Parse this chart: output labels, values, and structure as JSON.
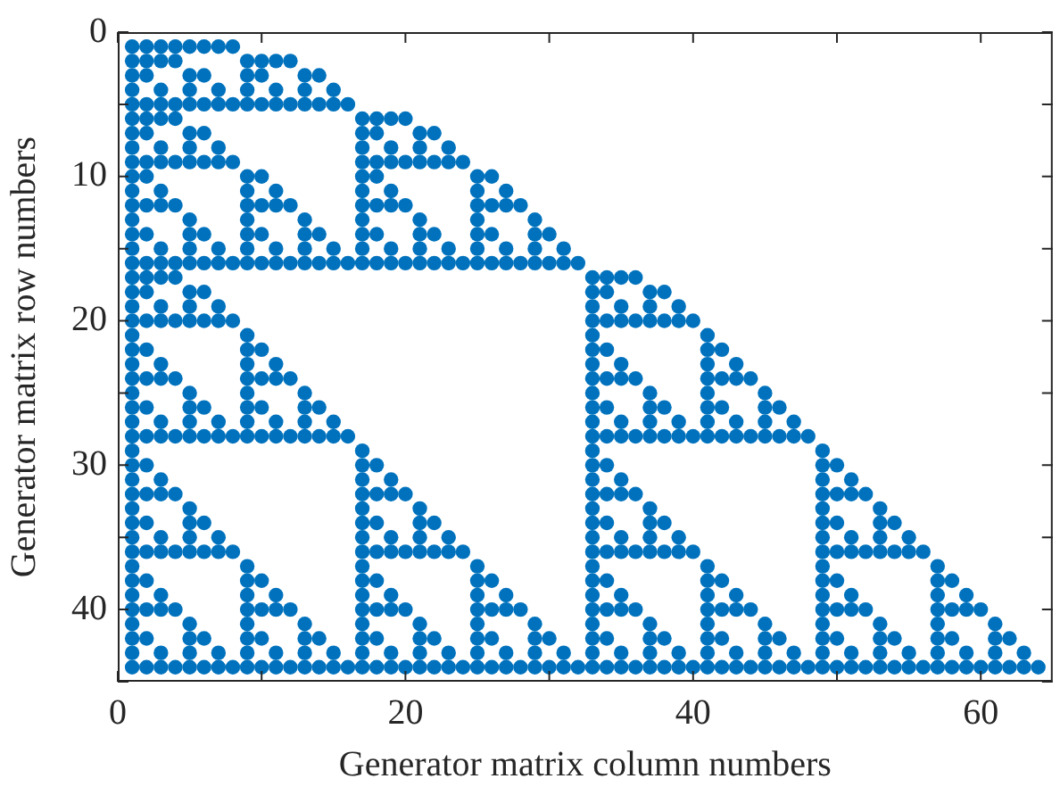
{
  "chart_data": {
    "type": "scatter",
    "xlabel": "Generator matrix column numbers",
    "ylabel": "Generator matrix row numbers",
    "color": "#0072bd",
    "marker": "circle",
    "xlim": [
      0,
      65
    ],
    "ylim": [
      45,
      0
    ],
    "xticks": [
      0,
      {
        "value": 10,
        "label": null
      },
      20,
      {
        "value": 30,
        "label": null
      },
      40,
      {
        "value": 50,
        "label": null
      },
      60
    ],
    "yticks": [
      0,
      {
        "value": 5,
        "label": null
      },
      10,
      {
        "value": 15,
        "label": null
      },
      20,
      {
        "value": 25,
        "label": null
      },
      30,
      {
        "value": 35,
        "label": null
      },
      40,
      {
        "value": 45,
        "label": null
      }
    ],
    "series": [
      {
        "x": [
          1,
          2,
          3,
          4,
          5,
          6,
          7,
          8
        ],
        "values": [
          1,
          1,
          1,
          1,
          1,
          1,
          1,
          1
        ]
      },
      {
        "x": [
          1,
          2,
          3,
          4,
          9,
          10,
          11,
          12
        ],
        "values": [
          2,
          2,
          2,
          2,
          2,
          2,
          2,
          2
        ]
      },
      {
        "x": [
          1,
          2,
          5,
          6,
          9,
          10,
          13,
          14
        ],
        "values": [
          3,
          3,
          3,
          3,
          3,
          3,
          3,
          3
        ]
      },
      {
        "x": [
          1,
          3,
          5,
          7,
          9,
          11,
          13,
          15
        ],
        "values": [
          4,
          4,
          4,
          4,
          4,
          4,
          4,
          4
        ]
      },
      {
        "x": [
          1,
          2,
          3,
          4,
          5,
          6,
          7,
          8,
          9,
          10,
          11,
          12,
          13,
          14,
          15,
          16
        ],
        "values": [
          5,
          5,
          5,
          5,
          5,
          5,
          5,
          5,
          5,
          5,
          5,
          5,
          5,
          5,
          5,
          5
        ]
      },
      {
        "x": [
          1,
          2,
          3,
          4,
          17,
          18,
          19,
          20
        ],
        "values": [
          6,
          6,
          6,
          6,
          6,
          6,
          6,
          6
        ]
      },
      {
        "x": [
          1,
          2,
          5,
          6,
          17,
          18,
          21,
          22
        ],
        "values": [
          7,
          7,
          7,
          7,
          7,
          7,
          7,
          7
        ]
      },
      {
        "x": [
          1,
          3,
          5,
          7,
          17,
          19,
          21,
          23
        ],
        "values": [
          8,
          8,
          8,
          8,
          8,
          8,
          8,
          8
        ]
      },
      {
        "x": [
          1,
          2,
          3,
          4,
          5,
          6,
          7,
          8,
          17,
          18,
          19,
          20,
          21,
          22,
          23,
          24
        ],
        "values": [
          9,
          9,
          9,
          9,
          9,
          9,
          9,
          9,
          9,
          9,
          9,
          9,
          9,
          9,
          9,
          9
        ]
      },
      {
        "x": [
          1,
          2,
          9,
          10,
          17,
          18,
          25,
          26
        ],
        "values": [
          10,
          10,
          10,
          10,
          10,
          10,
          10,
          10
        ]
      },
      {
        "x": [
          1,
          3,
          9,
          11,
          17,
          19,
          25,
          27
        ],
        "values": [
          11,
          11,
          11,
          11,
          11,
          11,
          11,
          11
        ]
      },
      {
        "x": [
          1,
          2,
          3,
          4,
          9,
          10,
          11,
          12,
          17,
          18,
          19,
          20,
          25,
          26,
          27,
          28
        ],
        "values": [
          12,
          12,
          12,
          12,
          12,
          12,
          12,
          12,
          12,
          12,
          12,
          12,
          12,
          12,
          12,
          12
        ]
      },
      {
        "x": [
          1,
          5,
          9,
          13,
          17,
          21,
          25,
          29
        ],
        "values": [
          13,
          13,
          13,
          13,
          13,
          13,
          13,
          13
        ]
      },
      {
        "x": [
          1,
          2,
          5,
          6,
          9,
          10,
          13,
          14,
          17,
          18,
          21,
          22,
          25,
          26,
          29,
          30
        ],
        "values": [
          14,
          14,
          14,
          14,
          14,
          14,
          14,
          14,
          14,
          14,
          14,
          14,
          14,
          14,
          14,
          14
        ]
      },
      {
        "x": [
          1,
          3,
          5,
          7,
          9,
          11,
          13,
          15,
          17,
          19,
          21,
          23,
          25,
          27,
          29,
          31
        ],
        "values": [
          15,
          15,
          15,
          15,
          15,
          15,
          15,
          15,
          15,
          15,
          15,
          15,
          15,
          15,
          15,
          15
        ]
      },
      {
        "x": [
          1,
          2,
          3,
          4,
          5,
          6,
          7,
          8,
          9,
          10,
          11,
          12,
          13,
          14,
          15,
          16,
          17,
          18,
          19,
          20,
          21,
          22,
          23,
          24,
          25,
          26,
          27,
          28,
          29,
          30,
          31,
          32
        ],
        "values": [
          16,
          16,
          16,
          16,
          16,
          16,
          16,
          16,
          16,
          16,
          16,
          16,
          16,
          16,
          16,
          16,
          16,
          16,
          16,
          16,
          16,
          16,
          16,
          16,
          16,
          16,
          16,
          16,
          16,
          16,
          16,
          16
        ]
      },
      {
        "x": [
          1,
          2,
          3,
          4,
          33,
          34,
          35,
          36
        ],
        "values": [
          17,
          17,
          17,
          17,
          17,
          17,
          17,
          17
        ]
      },
      {
        "x": [
          1,
          2,
          5,
          6,
          33,
          34,
          37,
          38
        ],
        "values": [
          18,
          18,
          18,
          18,
          18,
          18,
          18,
          18
        ]
      },
      {
        "x": [
          1,
          3,
          5,
          7,
          33,
          35,
          37,
          39
        ],
        "values": [
          19,
          19,
          19,
          19,
          19,
          19,
          19,
          19
        ]
      },
      {
        "x": [
          1,
          2,
          3,
          4,
          5,
          6,
          7,
          8,
          33,
          34,
          35,
          36,
          37,
          38,
          39,
          40
        ],
        "values": [
          20,
          20,
          20,
          20,
          20,
          20,
          20,
          20,
          20,
          20,
          20,
          20,
          20,
          20,
          20,
          20
        ]
      },
      {
        "x": [
          1,
          9,
          33,
          41
        ],
        "values": [
          21,
          21,
          21,
          21
        ]
      },
      {
        "x": [
          1,
          2,
          9,
          10,
          33,
          34,
          41,
          42
        ],
        "values": [
          22,
          22,
          22,
          22,
          22,
          22,
          22,
          22
        ]
      },
      {
        "x": [
          1,
          3,
          9,
          11,
          33,
          35,
          41,
          43
        ],
        "values": [
          23,
          23,
          23,
          23,
          23,
          23,
          23,
          23
        ]
      },
      {
        "x": [
          1,
          2,
          3,
          4,
          9,
          10,
          11,
          12,
          33,
          34,
          35,
          36,
          41,
          42,
          43,
          44
        ],
        "values": [
          24,
          24,
          24,
          24,
          24,
          24,
          24,
          24,
          24,
          24,
          24,
          24,
          24,
          24,
          24,
          24
        ]
      },
      {
        "x": [
          1,
          5,
          9,
          13,
          33,
          37,
          41,
          45
        ],
        "values": [
          25,
          25,
          25,
          25,
          25,
          25,
          25,
          25
        ]
      },
      {
        "x": [
          1,
          2,
          5,
          6,
          9,
          10,
          13,
          14,
          33,
          34,
          37,
          38,
          41,
          42,
          45,
          46
        ],
        "values": [
          26,
          26,
          26,
          26,
          26,
          26,
          26,
          26,
          26,
          26,
          26,
          26,
          26,
          26,
          26,
          26
        ]
      },
      {
        "x": [
          1,
          3,
          5,
          7,
          9,
          11,
          13,
          15,
          33,
          35,
          37,
          39,
          41,
          43,
          45,
          47
        ],
        "values": [
          27,
          27,
          27,
          27,
          27,
          27,
          27,
          27,
          27,
          27,
          27,
          27,
          27,
          27,
          27,
          27
        ]
      },
      {
        "x": [
          1,
          2,
          3,
          4,
          5,
          6,
          7,
          8,
          9,
          10,
          11,
          12,
          13,
          14,
          15,
          16,
          33,
          34,
          35,
          36,
          37,
          38,
          39,
          40,
          41,
          42,
          43,
          44,
          45,
          46,
          47,
          48
        ],
        "values": [
          28,
          28,
          28,
          28,
          28,
          28,
          28,
          28,
          28,
          28,
          28,
          28,
          28,
          28,
          28,
          28,
          28,
          28,
          28,
          28,
          28,
          28,
          28,
          28,
          28,
          28,
          28,
          28,
          28,
          28,
          28,
          28
        ]
      },
      {
        "x": [
          1,
          17,
          33,
          49
        ],
        "values": [
          29,
          29,
          29,
          29
        ]
      },
      {
        "x": [
          1,
          2,
          17,
          18,
          33,
          34,
          49,
          50
        ],
        "values": [
          30,
          30,
          30,
          30,
          30,
          30,
          30,
          30
        ]
      },
      {
        "x": [
          1,
          3,
          17,
          19,
          33,
          35,
          49,
          51
        ],
        "values": [
          31,
          31,
          31,
          31,
          31,
          31,
          31,
          31
        ]
      },
      {
        "x": [
          1,
          2,
          3,
          4,
          17,
          18,
          19,
          20,
          33,
          34,
          35,
          36,
          49,
          50,
          51,
          52
        ],
        "values": [
          32,
          32,
          32,
          32,
          32,
          32,
          32,
          32,
          32,
          32,
          32,
          32,
          32,
          32,
          32,
          32
        ]
      },
      {
        "x": [
          1,
          5,
          17,
          21,
          33,
          37,
          49,
          53
        ],
        "values": [
          33,
          33,
          33,
          33,
          33,
          33,
          33,
          33
        ]
      },
      {
        "x": [
          1,
          2,
          5,
          6,
          17,
          18,
          21,
          22,
          33,
          34,
          37,
          38,
          49,
          50,
          53,
          54
        ],
        "values": [
          34,
          34,
          34,
          34,
          34,
          34,
          34,
          34,
          34,
          34,
          34,
          34,
          34,
          34,
          34,
          34
        ]
      },
      {
        "x": [
          1,
          3,
          5,
          7,
          17,
          19,
          21,
          23,
          33,
          35,
          37,
          39,
          49,
          51,
          53,
          55
        ],
        "values": [
          35,
          35,
          35,
          35,
          35,
          35,
          35,
          35,
          35,
          35,
          35,
          35,
          35,
          35,
          35,
          35
        ]
      },
      {
        "x": [
          1,
          2,
          3,
          4,
          5,
          6,
          7,
          8,
          17,
          18,
          19,
          20,
          21,
          22,
          23,
          24,
          33,
          34,
          35,
          36,
          37,
          38,
          39,
          40,
          49,
          50,
          51,
          52,
          53,
          54,
          55,
          56
        ],
        "values": [
          36,
          36,
          36,
          36,
          36,
          36,
          36,
          36,
          36,
          36,
          36,
          36,
          36,
          36,
          36,
          36,
          36,
          36,
          36,
          36,
          36,
          36,
          36,
          36,
          36,
          36,
          36,
          36,
          36,
          36,
          36,
          36
        ]
      },
      {
        "x": [
          1,
          9,
          17,
          25,
          33,
          41,
          49,
          57
        ],
        "values": [
          37,
          37,
          37,
          37,
          37,
          37,
          37,
          37
        ]
      },
      {
        "x": [
          1,
          2,
          9,
          10,
          17,
          18,
          25,
          26,
          33,
          34,
          41,
          42,
          49,
          50,
          57,
          58
        ],
        "values": [
          38,
          38,
          38,
          38,
          38,
          38,
          38,
          38,
          38,
          38,
          38,
          38,
          38,
          38,
          38,
          38
        ]
      },
      {
        "x": [
          1,
          3,
          9,
          11,
          17,
          19,
          25,
          27,
          33,
          35,
          41,
          43,
          49,
          51,
          57,
          59
        ],
        "values": [
          39,
          39,
          39,
          39,
          39,
          39,
          39,
          39,
          39,
          39,
          39,
          39,
          39,
          39,
          39,
          39
        ]
      },
      {
        "x": [
          1,
          2,
          3,
          4,
          9,
          10,
          11,
          12,
          17,
          18,
          19,
          20,
          25,
          26,
          27,
          28,
          33,
          34,
          35,
          36,
          41,
          42,
          43,
          44,
          49,
          50,
          51,
          52,
          57,
          58,
          59,
          60
        ],
        "values": [
          40,
          40,
          40,
          40,
          40,
          40,
          40,
          40,
          40,
          40,
          40,
          40,
          40,
          40,
          40,
          40,
          40,
          40,
          40,
          40,
          40,
          40,
          40,
          40,
          40,
          40,
          40,
          40,
          40,
          40,
          40,
          40
        ]
      },
      {
        "x": [
          1,
          5,
          9,
          13,
          17,
          21,
          25,
          29,
          33,
          37,
          41,
          45,
          49,
          53,
          57,
          61
        ],
        "values": [
          41,
          41,
          41,
          41,
          41,
          41,
          41,
          41,
          41,
          41,
          41,
          41,
          41,
          41,
          41,
          41
        ]
      },
      {
        "x": [
          1,
          2,
          5,
          6,
          9,
          10,
          13,
          14,
          17,
          18,
          21,
          22,
          25,
          26,
          29,
          30,
          33,
          34,
          37,
          38,
          41,
          42,
          45,
          46,
          49,
          50,
          53,
          54,
          57,
          58,
          61,
          62
        ],
        "values": [
          42,
          42,
          42,
          42,
          42,
          42,
          42,
          42,
          42,
          42,
          42,
          42,
          42,
          42,
          42,
          42,
          42,
          42,
          42,
          42,
          42,
          42,
          42,
          42,
          42,
          42,
          42,
          42,
          42,
          42,
          42,
          42
        ]
      },
      {
        "x": [
          1,
          3,
          5,
          7,
          9,
          11,
          13,
          15,
          17,
          19,
          21,
          23,
          25,
          27,
          29,
          31,
          33,
          35,
          37,
          39,
          41,
          43,
          45,
          47,
          49,
          51,
          53,
          55,
          57,
          59,
          61,
          63
        ],
        "values": [
          43,
          43,
          43,
          43,
          43,
          43,
          43,
          43,
          43,
          43,
          43,
          43,
          43,
          43,
          43,
          43,
          43,
          43,
          43,
          43,
          43,
          43,
          43,
          43,
          43,
          43,
          43,
          43,
          43,
          43,
          43,
          43
        ]
      },
      {
        "x": [
          1,
          2,
          3,
          4,
          5,
          6,
          7,
          8,
          9,
          10,
          11,
          12,
          13,
          14,
          15,
          16,
          17,
          18,
          19,
          20,
          21,
          22,
          23,
          24,
          25,
          26,
          27,
          28,
          29,
          30,
          31,
          32,
          33,
          34,
          35,
          36,
          37,
          38,
          39,
          40,
          41,
          42,
          43,
          44,
          45,
          46,
          47,
          48,
          49,
          50,
          51,
          52,
          53,
          54,
          55,
          56,
          57,
          58,
          59,
          60,
          61,
          62,
          63,
          64
        ],
        "values": [
          44,
          44,
          44,
          44,
          44,
          44,
          44,
          44,
          44,
          44,
          44,
          44,
          44,
          44,
          44,
          44,
          44,
          44,
          44,
          44,
          44,
          44,
          44,
          44,
          44,
          44,
          44,
          44,
          44,
          44,
          44,
          44,
          44,
          44,
          44,
          44,
          44,
          44,
          44,
          44,
          44,
          44,
          44,
          44,
          44,
          44,
          44,
          44,
          44,
          44,
          44,
          44,
          44,
          44,
          44,
          44,
          44,
          44,
          44,
          44,
          44,
          44,
          44,
          44
        ]
      }
    ]
  }
}
